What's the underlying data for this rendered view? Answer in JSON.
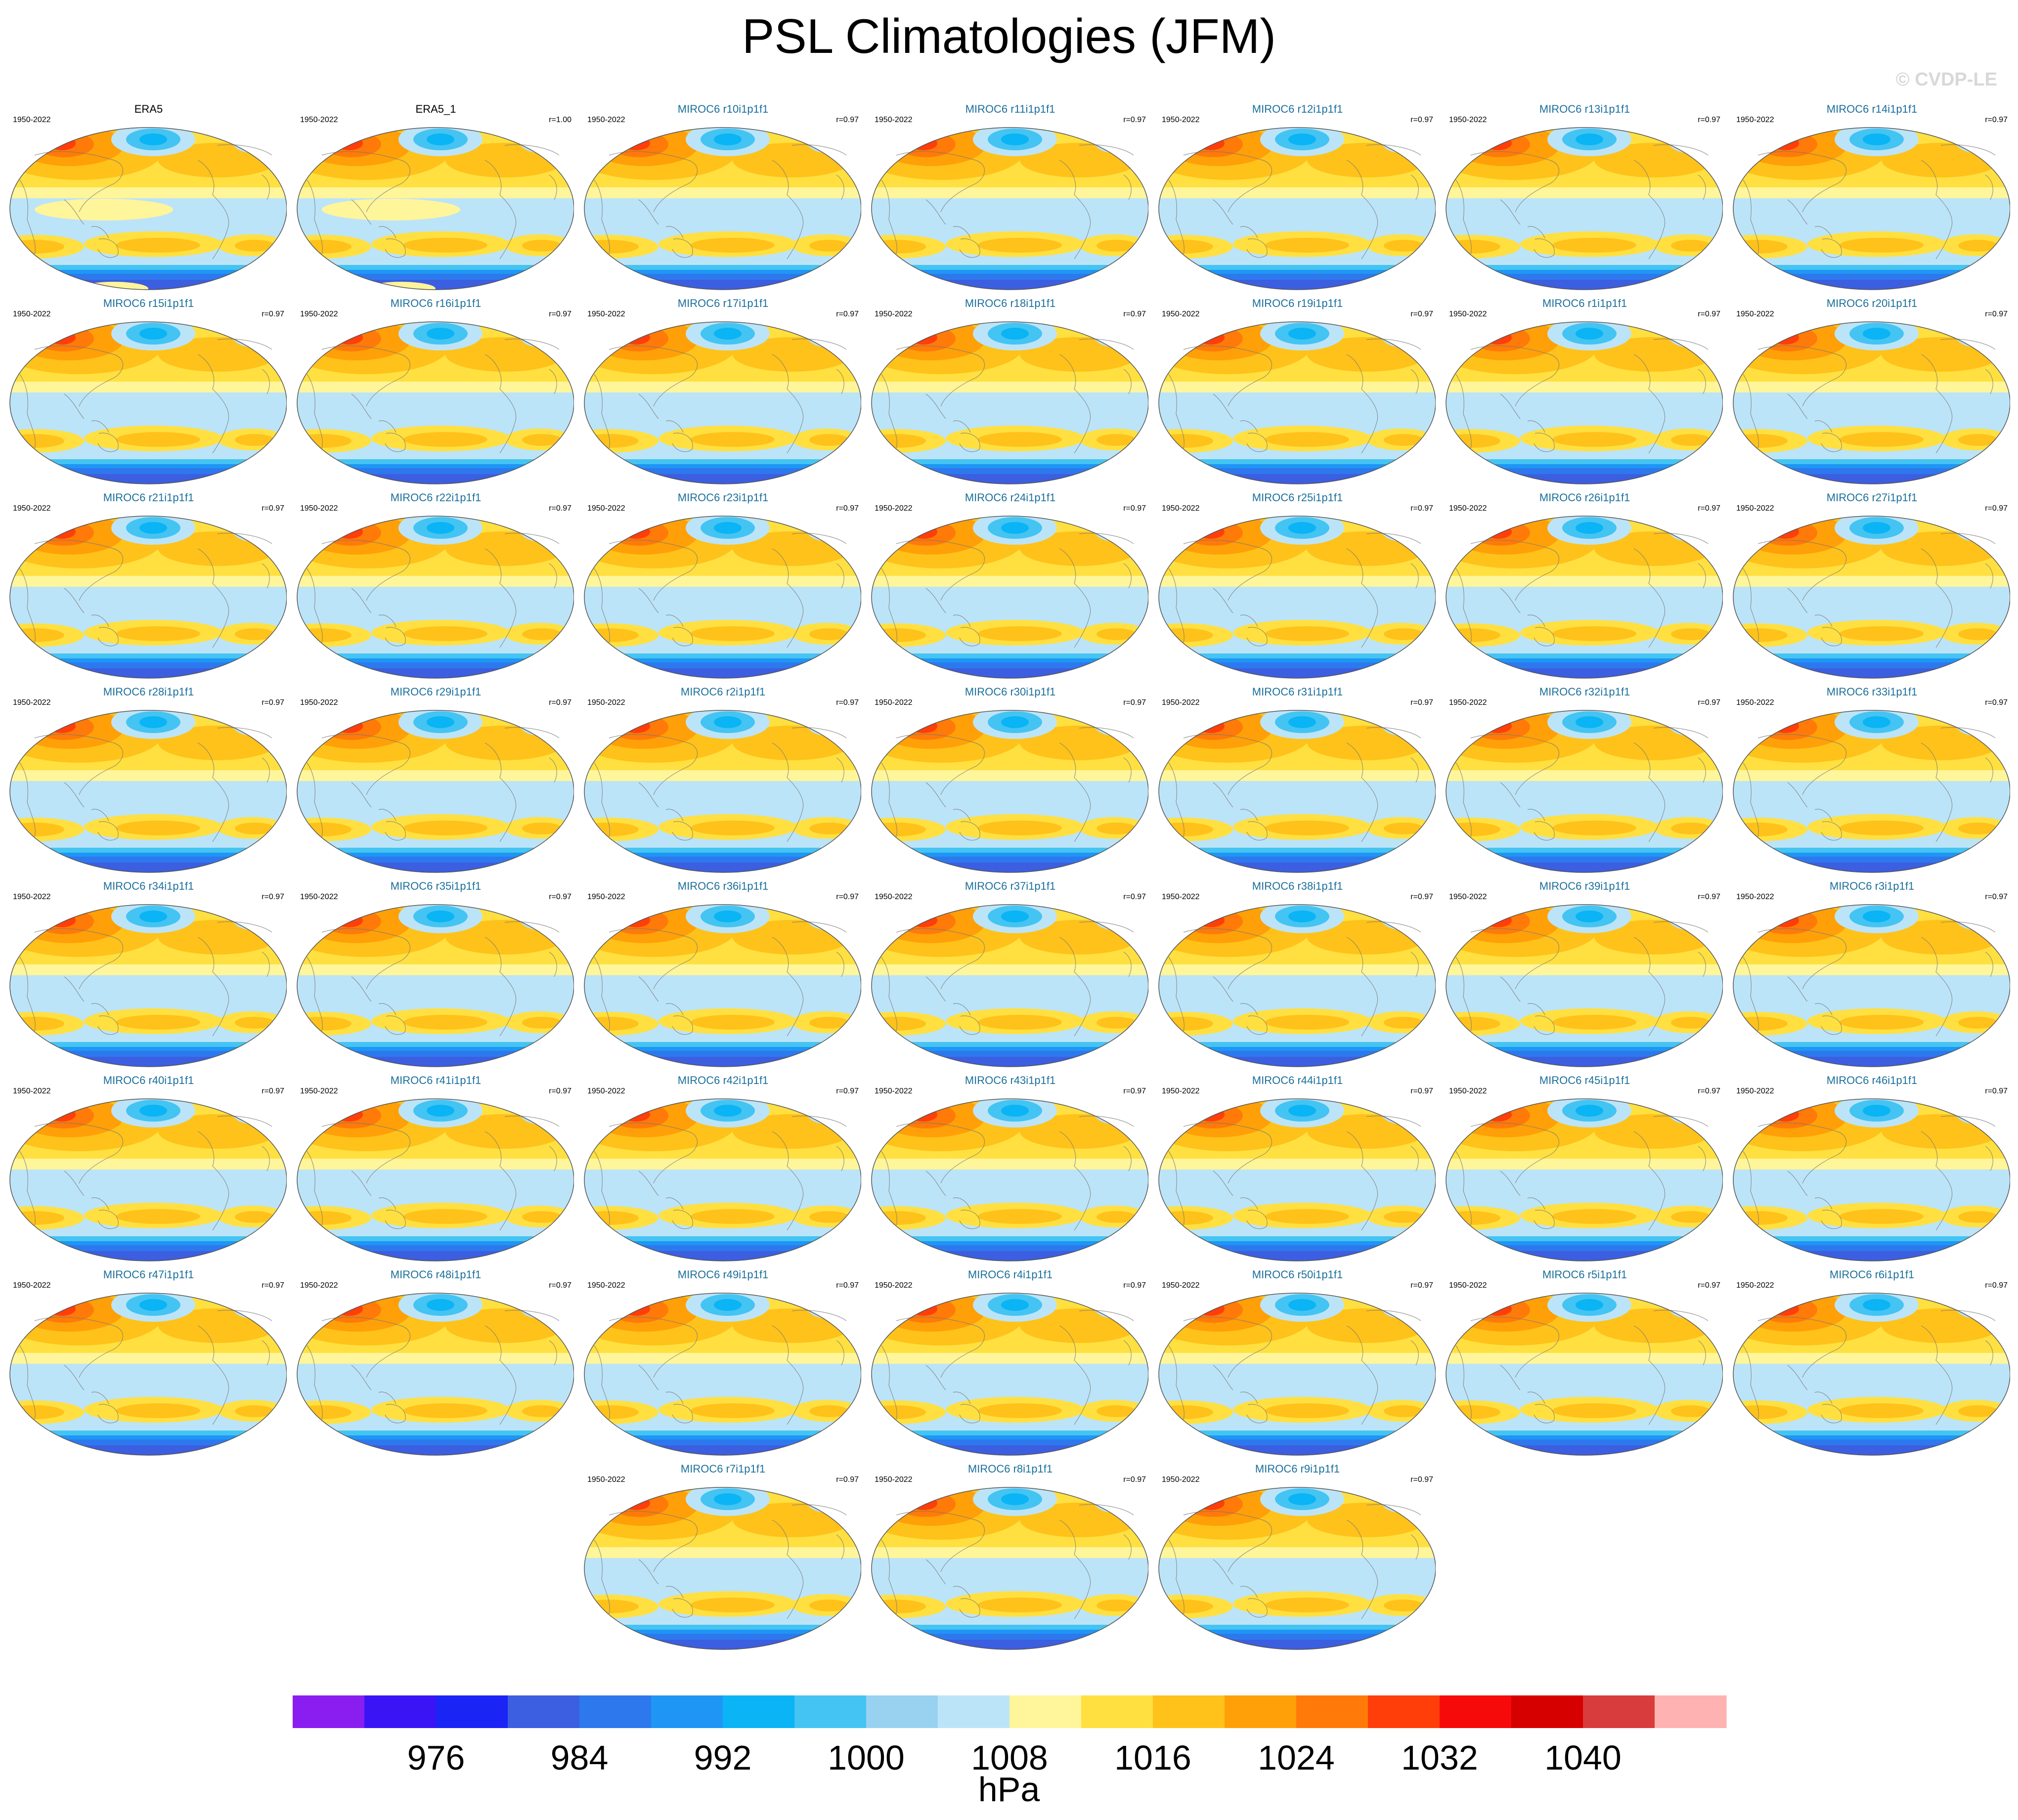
{
  "figure": {
    "title": "PSL Climatologies (JFM)",
    "copyright": "© CVDP-LE"
  },
  "panels": [
    {
      "title": "ERA5",
      "years": "1950-2022",
      "corr": "",
      "kind": "obs"
    },
    {
      "title": "ERA5_1",
      "years": "1950-2022",
      "corr": "r=1.00",
      "kind": "obs"
    },
    {
      "title": "MIROC6 r10i1p1f1",
      "years": "1950-2022",
      "corr": "r=0.97",
      "kind": "model"
    },
    {
      "title": "MIROC6 r11i1p1f1",
      "years": "1950-2022",
      "corr": "r=0.97",
      "kind": "model"
    },
    {
      "title": "MIROC6 r12i1p1f1",
      "years": "1950-2022",
      "corr": "r=0.97",
      "kind": "model"
    },
    {
      "title": "MIROC6 r13i1p1f1",
      "years": "1950-2022",
      "corr": "r=0.97",
      "kind": "model"
    },
    {
      "title": "MIROC6 r14i1p1f1",
      "years": "1950-2022",
      "corr": "r=0.97",
      "kind": "model"
    },
    {
      "title": "MIROC6 r15i1p1f1",
      "years": "1950-2022",
      "corr": "r=0.97",
      "kind": "model"
    },
    {
      "title": "MIROC6 r16i1p1f1",
      "years": "1950-2022",
      "corr": "r=0.97",
      "kind": "model"
    },
    {
      "title": "MIROC6 r17i1p1f1",
      "years": "1950-2022",
      "corr": "r=0.97",
      "kind": "model"
    },
    {
      "title": "MIROC6 r18i1p1f1",
      "years": "1950-2022",
      "corr": "r=0.97",
      "kind": "model"
    },
    {
      "title": "MIROC6 r19i1p1f1",
      "years": "1950-2022",
      "corr": "r=0.97",
      "kind": "model"
    },
    {
      "title": "MIROC6 r1i1p1f1",
      "years": "1950-2022",
      "corr": "r=0.97",
      "kind": "model"
    },
    {
      "title": "MIROC6 r20i1p1f1",
      "years": "1950-2022",
      "corr": "r=0.97",
      "kind": "model"
    },
    {
      "title": "MIROC6 r21i1p1f1",
      "years": "1950-2022",
      "corr": "r=0.97",
      "kind": "model"
    },
    {
      "title": "MIROC6 r22i1p1f1",
      "years": "1950-2022",
      "corr": "r=0.97",
      "kind": "model"
    },
    {
      "title": "MIROC6 r23i1p1f1",
      "years": "1950-2022",
      "corr": "r=0.97",
      "kind": "model"
    },
    {
      "title": "MIROC6 r24i1p1f1",
      "years": "1950-2022",
      "corr": "r=0.97",
      "kind": "model"
    },
    {
      "title": "MIROC6 r25i1p1f1",
      "years": "1950-2022",
      "corr": "r=0.97",
      "kind": "model"
    },
    {
      "title": "MIROC6 r26i1p1f1",
      "years": "1950-2022",
      "corr": "r=0.97",
      "kind": "model"
    },
    {
      "title": "MIROC6 r27i1p1f1",
      "years": "1950-2022",
      "corr": "r=0.97",
      "kind": "model"
    },
    {
      "title": "MIROC6 r28i1p1f1",
      "years": "1950-2022",
      "corr": "r=0.97",
      "kind": "model"
    },
    {
      "title": "MIROC6 r29i1p1f1",
      "years": "1950-2022",
      "corr": "r=0.97",
      "kind": "model"
    },
    {
      "title": "MIROC6 r2i1p1f1",
      "years": "1950-2022",
      "corr": "r=0.97",
      "kind": "model"
    },
    {
      "title": "MIROC6 r30i1p1f1",
      "years": "1950-2022",
      "corr": "r=0.97",
      "kind": "model"
    },
    {
      "title": "MIROC6 r31i1p1f1",
      "years": "1950-2022",
      "corr": "r=0.97",
      "kind": "model"
    },
    {
      "title": "MIROC6 r32i1p1f1",
      "years": "1950-2022",
      "corr": "r=0.97",
      "kind": "model"
    },
    {
      "title": "MIROC6 r33i1p1f1",
      "years": "1950-2022",
      "corr": "r=0.97",
      "kind": "model"
    },
    {
      "title": "MIROC6 r34i1p1f1",
      "years": "1950-2022",
      "corr": "r=0.97",
      "kind": "model"
    },
    {
      "title": "MIROC6 r35i1p1f1",
      "years": "1950-2022",
      "corr": "r=0.97",
      "kind": "model"
    },
    {
      "title": "MIROC6 r36i1p1f1",
      "years": "1950-2022",
      "corr": "r=0.97",
      "kind": "model"
    },
    {
      "title": "MIROC6 r37i1p1f1",
      "years": "1950-2022",
      "corr": "r=0.97",
      "kind": "model"
    },
    {
      "title": "MIROC6 r38i1p1f1",
      "years": "1950-2022",
      "corr": "r=0.97",
      "kind": "model"
    },
    {
      "title": "MIROC6 r39i1p1f1",
      "years": "1950-2022",
      "corr": "r=0.97",
      "kind": "model"
    },
    {
      "title": "MIROC6 r3i1p1f1",
      "years": "1950-2022",
      "corr": "r=0.97",
      "kind": "model"
    },
    {
      "title": "MIROC6 r40i1p1f1",
      "years": "1950-2022",
      "corr": "r=0.97",
      "kind": "model"
    },
    {
      "title": "MIROC6 r41i1p1f1",
      "years": "1950-2022",
      "corr": "r=0.97",
      "kind": "model"
    },
    {
      "title": "MIROC6 r42i1p1f1",
      "years": "1950-2022",
      "corr": "r=0.97",
      "kind": "model"
    },
    {
      "title": "MIROC6 r43i1p1f1",
      "years": "1950-2022",
      "corr": "r=0.97",
      "kind": "model"
    },
    {
      "title": "MIROC6 r44i1p1f1",
      "years": "1950-2022",
      "corr": "r=0.97",
      "kind": "model"
    },
    {
      "title": "MIROC6 r45i1p1f1",
      "years": "1950-2022",
      "corr": "r=0.97",
      "kind": "model"
    },
    {
      "title": "MIROC6 r46i1p1f1",
      "years": "1950-2022",
      "corr": "r=0.97",
      "kind": "model"
    },
    {
      "title": "MIROC6 r47i1p1f1",
      "years": "1950-2022",
      "corr": "r=0.97",
      "kind": "model"
    },
    {
      "title": "MIROC6 r48i1p1f1",
      "years": "1950-2022",
      "corr": "r=0.97",
      "kind": "model"
    },
    {
      "title": "MIROC6 r49i1p1f1",
      "years": "1950-2022",
      "corr": "r=0.97",
      "kind": "model"
    },
    {
      "title": "MIROC6 r4i1p1f1",
      "years": "1950-2022",
      "corr": "r=0.97",
      "kind": "model"
    },
    {
      "title": "MIROC6 r50i1p1f1",
      "years": "1950-2022",
      "corr": "r=0.97",
      "kind": "model"
    },
    {
      "title": "MIROC6 r5i1p1f1",
      "years": "1950-2022",
      "corr": "r=0.97",
      "kind": "model"
    },
    {
      "title": "MIROC6 r6i1p1f1",
      "years": "1950-2022",
      "corr": "r=0.97",
      "kind": "model"
    },
    {
      "title": "MIROC6 r7i1p1f1",
      "years": "1950-2022",
      "corr": "r=0.97",
      "kind": "model"
    },
    {
      "title": "MIROC6 r8i1p1f1",
      "years": "1950-2022",
      "corr": "r=0.97",
      "kind": "model"
    },
    {
      "title": "MIROC6 r9i1p1f1",
      "years": "1950-2022",
      "corr": "r=0.97",
      "kind": "model"
    }
  ],
  "colorbar": {
    "units": "hPa",
    "levels": [
      972,
      976,
      980,
      984,
      988,
      992,
      996,
      1000,
      1004,
      1008,
      1012,
      1016,
      1020,
      1024,
      1028,
      1032,
      1036,
      1040,
      1044
    ],
    "tick_labels": [
      "976",
      "984",
      "992",
      "1000",
      "1008",
      "1016",
      "1024",
      "1032",
      "1040"
    ],
    "tick_values": [
      976,
      984,
      992,
      1000,
      1008,
      1016,
      1024,
      1032,
      1040
    ],
    "colors": [
      "#8a1ef0",
      "#3a14f5",
      "#1a24f5",
      "#3c5ee0",
      "#2e78ee",
      "#1e96f5",
      "#0ab4f5",
      "#44c4f2",
      "#98d2f0",
      "#bce4f8",
      "#fff59a",
      "#ffe040",
      "#ffc21a",
      "#ffa008",
      "#ff7a08",
      "#ff3e0a",
      "#f70a0a",
      "#d60000",
      "#d83c3c",
      "#ffb2b2"
    ]
  }
}
